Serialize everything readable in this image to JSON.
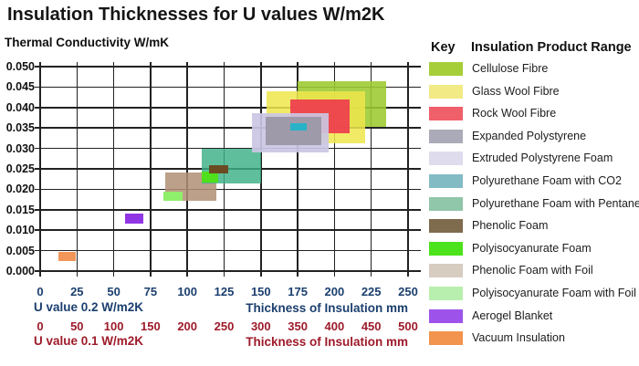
{
  "chart_data": {
    "type": "scatter",
    "mark": "range-rectangles",
    "title": "Insulation Thicknesses for U values W/m2K",
    "ylabel": "Thermal Conductivity W/mK",
    "grid": true,
    "legend_position": "right",
    "y_axis": {
      "min": 0.0,
      "max": 0.05,
      "step": 0.005,
      "tick_labels_top_to_bottom": [
        "0.050",
        "0.045",
        "0.040",
        "0.035",
        "0.030",
        "0.025",
        "0.020",
        "0.015",
        "0.010",
        "0.005",
        "0.000"
      ]
    },
    "x_axis_primary": {
      "caption": "U value 0.2 W/m2K",
      "axis_label": "Thickness of Insulation mm",
      "ticks": [
        0,
        25,
        50,
        75,
        100,
        125,
        150,
        175,
        200,
        225,
        250
      ],
      "max": 250,
      "color": "#1b3f6e"
    },
    "x_axis_secondary": {
      "caption": "U value 0.1 W/m2K",
      "axis_label": "Thickness of Insulation mm",
      "ticks": [
        0,
        50,
        100,
        150,
        200,
        250,
        300,
        350,
        400,
        450,
        500
      ],
      "max": 500,
      "color": "#9e1b2a"
    },
    "boxes": [
      {
        "name": "Vacuum Insulation",
        "fill": "#f2965a",
        "alpha": 1,
        "thickness_mm_u02": [
          12.5,
          24
        ],
        "thickness_mm_u01": [
          25,
          48
        ],
        "conductivity_w_mk": [
          0.0025,
          0.0047
        ]
      },
      {
        "name": "Aerogel Blanket",
        "fill": "#9136e4",
        "alpha": 1,
        "thickness_mm_u02": [
          58,
          70
        ],
        "thickness_mm_u01": [
          116,
          140
        ],
        "conductivity_w_mk": [
          0.0117,
          0.014
        ]
      },
      {
        "name": "Phenolic Foam with Foil",
        "fill": "#b08f74",
        "alpha": 0.85,
        "thickness_mm_u02": [
          85,
          120
        ],
        "thickness_mm_u01": [
          170,
          240
        ],
        "conductivity_w_mk": [
          0.0172,
          0.024
        ]
      },
      {
        "name": "Polyurethane Foam with Pentane",
        "fill": "#3cb086",
        "alpha": 0.82,
        "thickness_mm_u02": [
          110,
          150
        ],
        "thickness_mm_u01": [
          220,
          300
        ],
        "conductivity_w_mk": [
          0.0215,
          0.03
        ]
      },
      {
        "name": "Polyisocyanurate Foam",
        "fill": "#50df1c",
        "alpha": 1,
        "thickness_mm_u02": [
          110,
          121
        ],
        "thickness_mm_u01": [
          220,
          242
        ],
        "conductivity_w_mk": [
          0.0217,
          0.0243
        ]
      },
      {
        "name": "Phenolic Foam",
        "fill": "#6b4b23",
        "alpha": 1,
        "thickness_mm_u02": [
          115,
          128
        ],
        "thickness_mm_u01": [
          230,
          256
        ],
        "conductivity_w_mk": [
          0.0239,
          0.026
        ]
      },
      {
        "name": "Polyisocyanurate Foam with Foil",
        "fill": "#8fee6b",
        "alpha": 1,
        "thickness_mm_u02": [
          84,
          97
        ],
        "thickness_mm_u01": [
          168,
          194
        ],
        "conductivity_w_mk": [
          0.0172,
          0.0194
        ]
      },
      {
        "name": "Cellulose Fibre",
        "fill": "#9cc930",
        "alpha": 0.88,
        "thickness_mm_u02": [
          175,
          235
        ],
        "thickness_mm_u01": [
          350,
          470
        ],
        "conductivity_w_mk": [
          0.0353,
          0.0465
        ]
      },
      {
        "name": "Glass Wool Fibre",
        "fill": "#efe64c",
        "alpha": 0.85,
        "thickness_mm_u02": [
          154,
          221
        ],
        "thickness_mm_u01": [
          308,
          442
        ],
        "conductivity_w_mk": [
          0.0312,
          0.044
        ]
      },
      {
        "name": "Rock Wool Fibre",
        "fill": "#ee384e",
        "alpha": 0.9,
        "thickness_mm_u02": [
          170,
          210
        ],
        "thickness_mm_u01": [
          340,
          420
        ],
        "conductivity_w_mk": [
          0.0338,
          0.0419
        ]
      },
      {
        "name": "Extruded Polystyrene Foam",
        "fill": "#cbc6e3",
        "alpha": 0.92,
        "thickness_mm_u02": [
          144,
          196
        ],
        "thickness_mm_u01": [
          288,
          392
        ],
        "conductivity_w_mk": [
          0.0291,
          0.0387
        ]
      },
      {
        "name": "Expanded Polystyrene",
        "fill": "#9b98a6",
        "alpha": 0.95,
        "thickness_mm_u02": [
          153,
          191
        ],
        "thickness_mm_u01": [
          306,
          382
        ],
        "conductivity_w_mk": [
          0.0308,
          0.0377
        ]
      },
      {
        "name": "Polyurethane Foam with CO2",
        "fill": "#28b2c8",
        "alpha": 1,
        "thickness_mm_u02": [
          170,
          181
        ],
        "thickness_mm_u01": [
          340,
          362
        ],
        "conductivity_w_mk": [
          0.0343,
          0.0361
        ]
      }
    ]
  },
  "legend": {
    "key_header": "Key",
    "range_header": "Insulation Product Range",
    "items": [
      {
        "label": "Cellulose Fibre",
        "swatch": "#a6ce39"
      },
      {
        "label": "Glass Wool Fibre",
        "swatch": "#f2ea84"
      },
      {
        "label": "Rock Wool Fibre",
        "swatch": "#f0606a"
      },
      {
        "label": "Expanded Polystyrene",
        "swatch": "#abaab8"
      },
      {
        "label": "Extruded Polystyrene Foam",
        "swatch": "#dfdcee"
      },
      {
        "label": "Polyurethane Foam with CO2",
        "swatch": "#83bbc5"
      },
      {
        "label": "Polyurethane Foam with Pentane",
        "swatch": "#90c6aa"
      },
      {
        "label": "Phenolic Foam",
        "swatch": "#7f6b4e"
      },
      {
        "label": "Polyisocyanurate Foam",
        "swatch": "#4ce31c"
      },
      {
        "label": "Phenolic Foam with Foil",
        "swatch": "#d7ccc0"
      },
      {
        "label": "Polyisocyanurate Foam with Foil",
        "swatch": "#b9efae"
      },
      {
        "label": "Aerogel Blanket",
        "swatch": "#9d53e9"
      },
      {
        "label": "Vacuum Insulation",
        "swatch": "#f2934e"
      }
    ]
  }
}
